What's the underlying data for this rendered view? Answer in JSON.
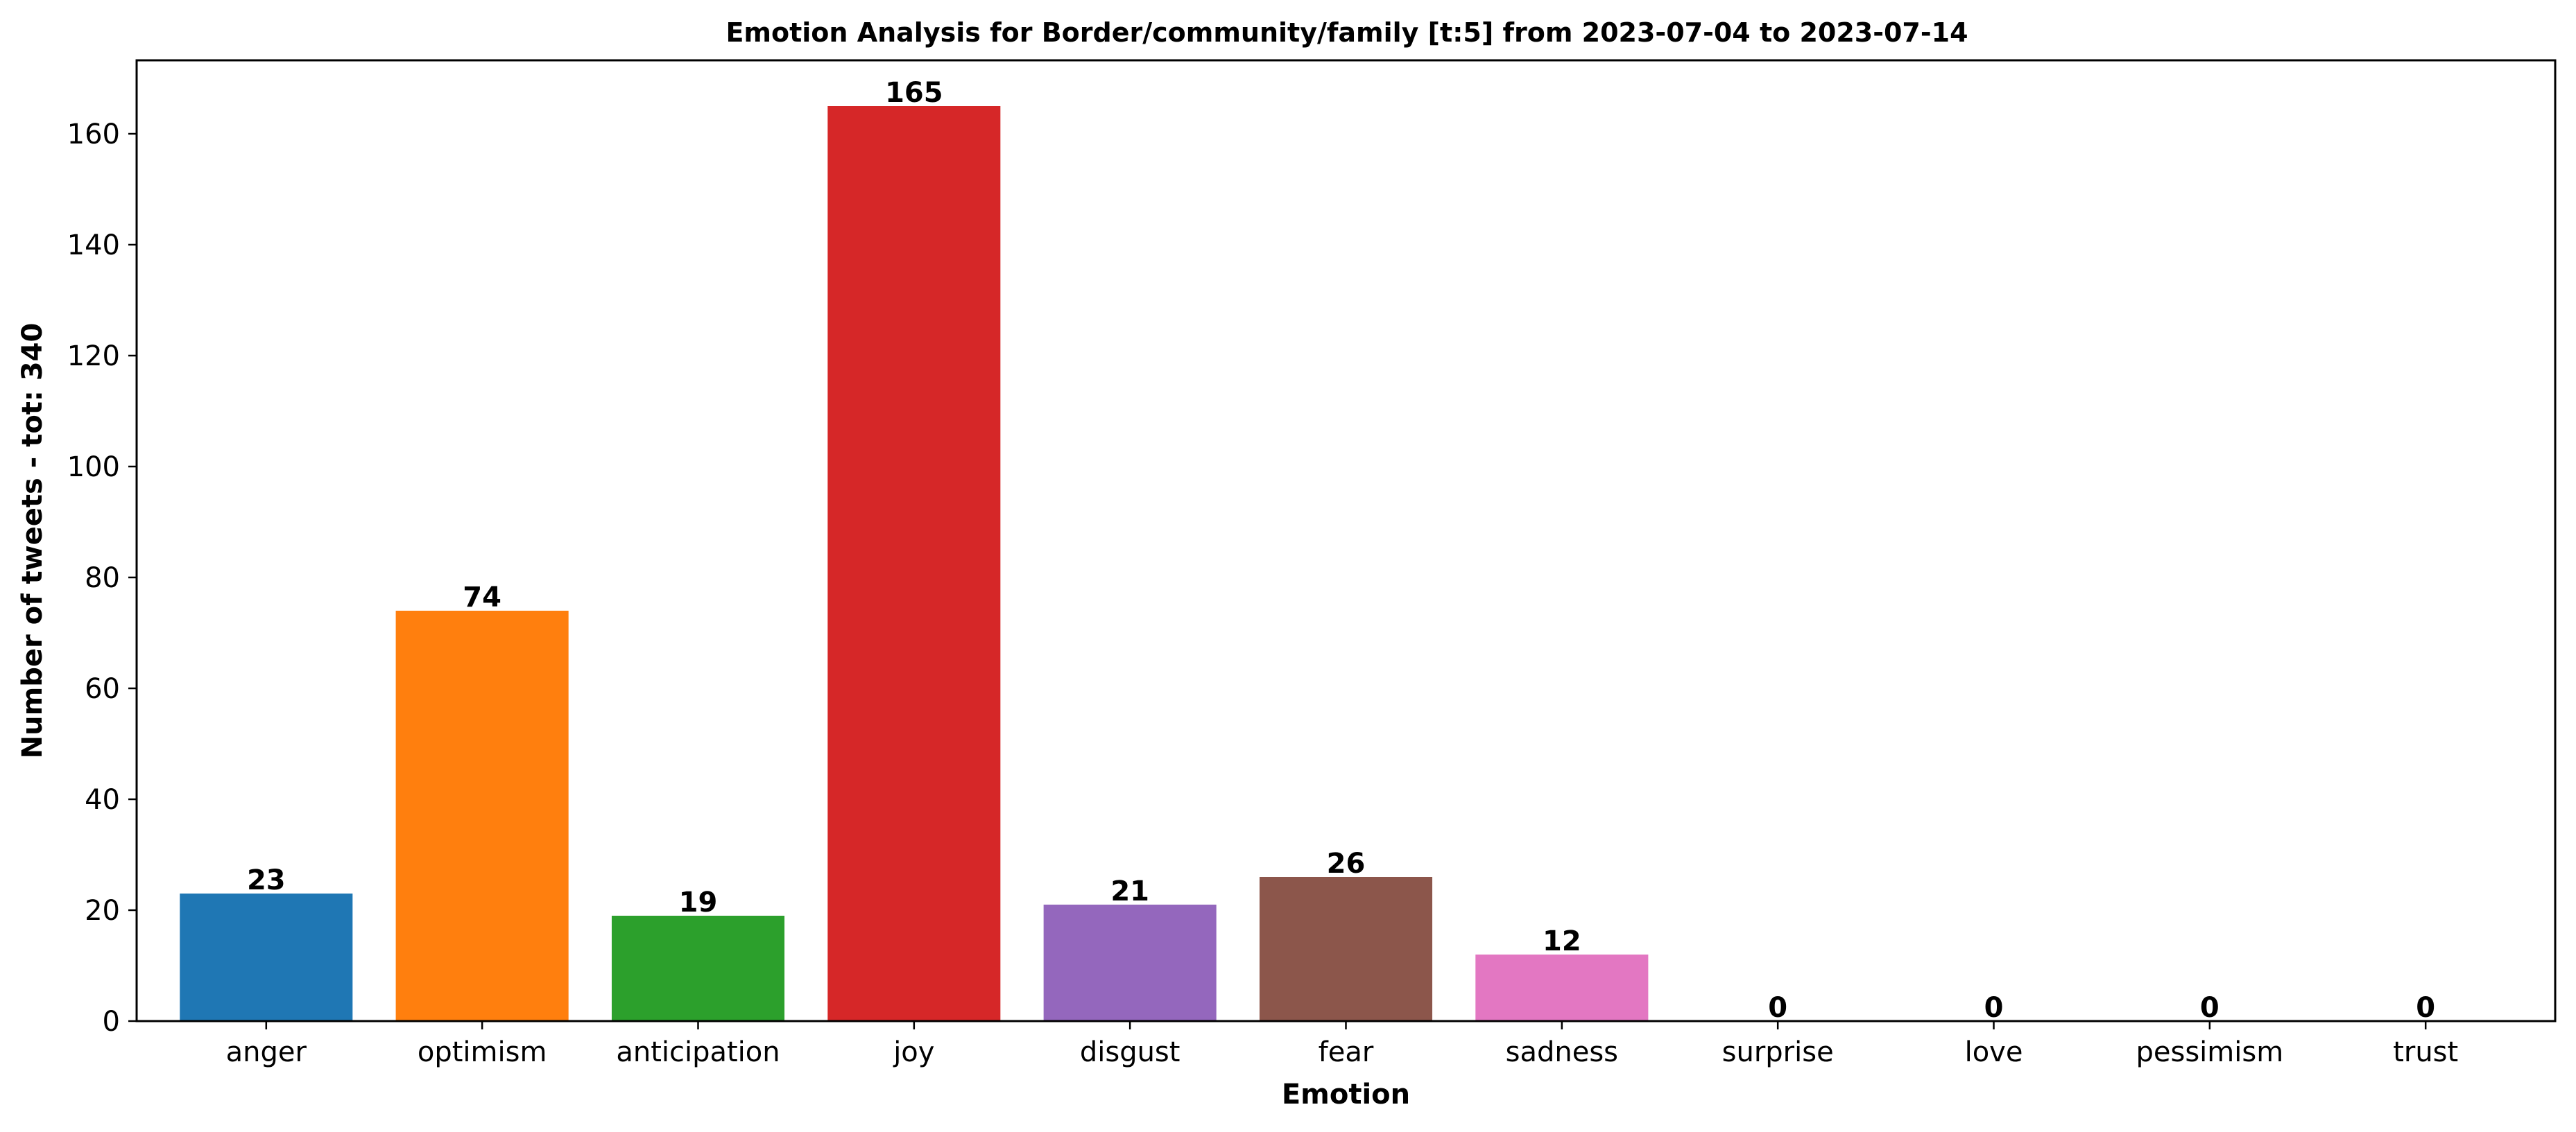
{
  "chart_data": {
    "type": "bar",
    "title": "Emotion Analysis for Border/community/family [t:5] from 2023-07-04 to 2023-07-14",
    "xlabel": "Emotion",
    "ylabel": "Number of tweets - tot: 340",
    "categories": [
      "anger",
      "optimism",
      "anticipation",
      "joy",
      "disgust",
      "fear",
      "sadness",
      "surprise",
      "love",
      "pessimism",
      "trust"
    ],
    "values": [
      23,
      74,
      19,
      165,
      21,
      26,
      12,
      0,
      0,
      0,
      0
    ],
    "data_labels": [
      "23",
      "74",
      "19",
      "165",
      "21",
      "26",
      "12",
      "0",
      "0",
      "0",
      "0"
    ],
    "colors": [
      "#1f77b4",
      "#ff7f0e",
      "#2ca02c",
      "#d62728",
      "#9467bd",
      "#8c564b",
      "#e377c2",
      "#7f7f7f",
      "#bcbd22",
      "#17becf",
      "#1f77b4"
    ],
    "ylim": [
      0,
      173.25
    ],
    "yticks": [
      0,
      20,
      40,
      60,
      80,
      100,
      120,
      140,
      160
    ],
    "ytick_labels": [
      "0",
      "20",
      "40",
      "60",
      "80",
      "100",
      "120",
      "140",
      "160"
    ],
    "grid": false,
    "legend": "none"
  }
}
